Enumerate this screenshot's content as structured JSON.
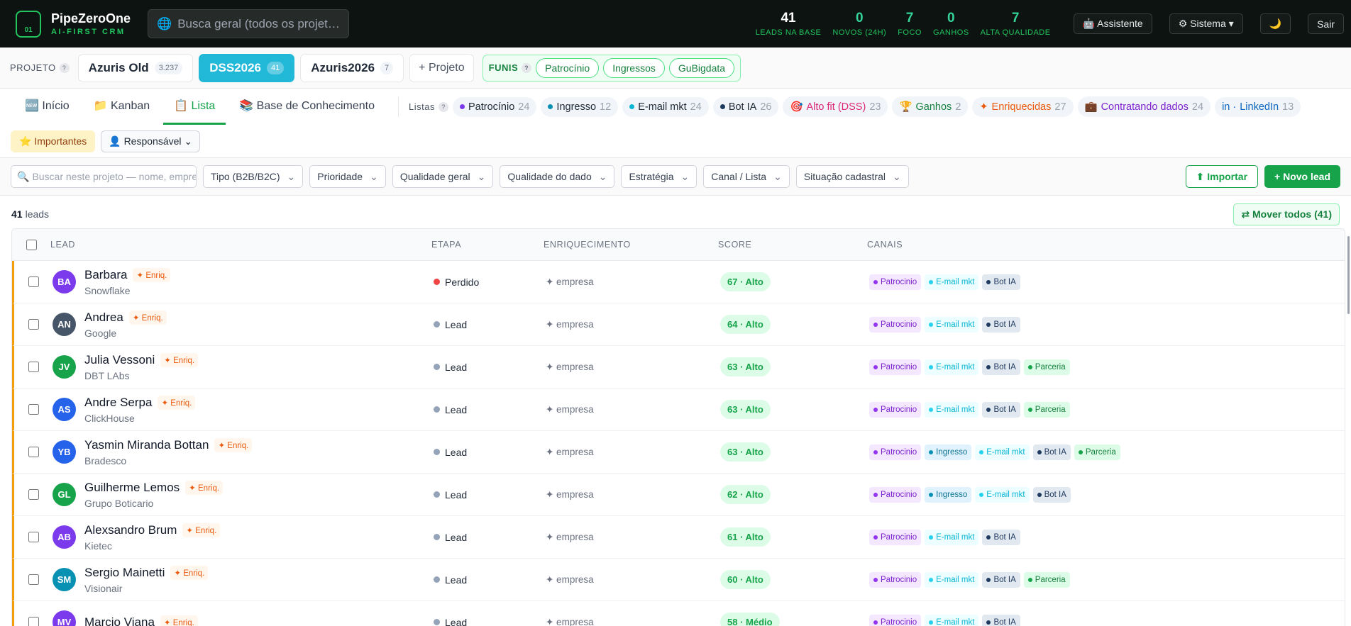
{
  "header": {
    "brand": "PipeZeroOne",
    "tagline": "AI-FIRST CRM",
    "logo": "01",
    "search_icon": "🌐",
    "search": "Busca geral (todos os projetos)",
    "stats": [
      {
        "value": "41",
        "label": "LEADS NA BASE",
        "color": "#ffffff"
      },
      {
        "value": "0",
        "label": "NOVOS (24H)",
        "color": "#34d399"
      },
      {
        "value": "7",
        "label": "FOCO",
        "color": "#34d399"
      },
      {
        "value": "0",
        "label": "GANHOS",
        "color": "#34d399"
      },
      {
        "value": "7",
        "label": "ALTA QUALIDADE",
        "color": "#34d399"
      }
    ],
    "buttons": [
      "🤖 Assistente",
      "⚙ Sistema ▾",
      "🌙",
      "Sair"
    ]
  },
  "projects": {
    "label": "PROJETO",
    "help": "?",
    "items": [
      {
        "name": "Azuris Old",
        "count": "3.237"
      },
      {
        "name": "DSS2026",
        "count": "41",
        "active": true
      },
      {
        "name": "Azuris2026",
        "count": "7"
      }
    ],
    "add": "+ Projeto",
    "funnels_label": "FUNIS",
    "funnels": [
      "Patrocínio",
      "Ingressos",
      "GuBigdata"
    ]
  },
  "tabs": [
    {
      "label": "🆕 Início"
    },
    {
      "label": "📁 Kanban"
    },
    {
      "label": "📋 Lista",
      "active": true
    },
    {
      "label": "📚 Base de Conhecimento"
    }
  ],
  "lists": {
    "label": "Listas",
    "help": "?",
    "items": [
      {
        "name": "Patrocínio",
        "count": "24",
        "dot": "#7c3aed",
        "color": "#1f2937"
      },
      {
        "name": "Ingresso",
        "count": "12",
        "dot": "#0891b2",
        "color": "#1f2937"
      },
      {
        "name": "E-mail mkt",
        "count": "24",
        "dot": "#06b6d4",
        "color": "#1f2937"
      },
      {
        "name": "Bot IA",
        "count": "26",
        "dot": "#1e3a5f",
        "color": "#1f2937"
      },
      {
        "icon": "🎯",
        "name": "Alto fit (DSS)",
        "count": "23",
        "color": "#db2777"
      },
      {
        "icon": "🏆",
        "name": "Ganhos",
        "count": "2",
        "color": "#15803d"
      },
      {
        "icon": "✦",
        "name": "Enriquecidas",
        "count": "27",
        "color": "#ea580c"
      },
      {
        "icon": "💼",
        "name": "Contratando dados",
        "count": "24",
        "color": "#7e22ce"
      },
      {
        "icon": "in ·",
        "name": "LinkedIn",
        "count": "13",
        "color": "#0a66c2"
      }
    ]
  },
  "quick": [
    "⭐ Importantes",
    "👤 Responsável ⌄"
  ],
  "filters": {
    "search_icon": "🔍",
    "search": "Buscar neste projeto — nome, empresa",
    "selects": [
      "Tipo (B2B/B2C)",
      "Prioridade",
      "Qualidade geral",
      "Qualidade do dado",
      "Estratégia",
      "Canal / Lista",
      "Situação cadastral"
    ],
    "import": "⬆ Importar",
    "new": "+ Novo lead"
  },
  "summary": {
    "count": "41",
    "unit": "leads",
    "move": "⇄ Mover todos (41)"
  },
  "table": {
    "columns": [
      "LEAD",
      "ETAPA",
      "ENRIQUECIMENTO",
      "SCORE",
      "CANAIS"
    ],
    "channel_styles": {
      "Patrocinio": {
        "bg": "#f3e8ff",
        "fg": "#7e22ce",
        "dot": "#9333ea"
      },
      "Ingresso": {
        "bg": "#e0f2fe",
        "fg": "#0e7490",
        "dot": "#0891b2"
      },
      "E-mail mkt": {
        "bg": "#ecfeff",
        "fg": "#06b6d4",
        "dot": "#22d3ee"
      },
      "Bot IA": {
        "bg": "#e2e8f0",
        "fg": "#1e3a5f",
        "dot": "#1e3a5f"
      },
      "Parceria": {
        "bg": "#dcfce7",
        "fg": "#15803d",
        "dot": "#16a34a"
      }
    },
    "rows": [
      {
        "initials": "BA",
        "avatar": "#7c3aed",
        "name": "Barbara",
        "badge": "✦ Enriq.",
        "company": "Snowflake",
        "stage": "Perdido",
        "stage_color": "#ef4444",
        "enrichment": "✦ empresa",
        "score": "67 · Alto",
        "channels": [
          "Patrocinio",
          "E-mail mkt",
          "Bot IA"
        ]
      },
      {
        "initials": "AN",
        "avatar": "#475569",
        "name": "Andrea",
        "badge": "✦ Enriq.",
        "company": "Google",
        "stage": "Lead",
        "stage_color": "#94a3b8",
        "enrichment": "✦ empresa",
        "score": "64 · Alto",
        "channels": [
          "Patrocinio",
          "E-mail mkt",
          "Bot IA"
        ]
      },
      {
        "initials": "JV",
        "avatar": "#16a34a",
        "name": "Julia Vessoni",
        "badge": "✦ Enriq.",
        "company": "DBT LAbs",
        "stage": "Lead",
        "stage_color": "#94a3b8",
        "enrichment": "✦ empresa",
        "score": "63 · Alto",
        "channels": [
          "Patrocinio",
          "E-mail mkt",
          "Bot IA",
          "Parceria"
        ]
      },
      {
        "initials": "AS",
        "avatar": "#2563eb",
        "name": "Andre Serpa",
        "badge": "✦ Enriq.",
        "company": "ClickHouse",
        "stage": "Lead",
        "stage_color": "#94a3b8",
        "enrichment": "✦ empresa",
        "score": "63 · Alto",
        "channels": [
          "Patrocinio",
          "E-mail mkt",
          "Bot IA",
          "Parceria"
        ]
      },
      {
        "initials": "YB",
        "avatar": "#2563eb",
        "name": "Yasmin Miranda Bottan",
        "badge": "✦ Enriq.",
        "company": "Bradesco",
        "stage": "Lead",
        "stage_color": "#94a3b8",
        "enrichment": "✦ empresa",
        "score": "63 · Alto",
        "channels": [
          "Patrocinio",
          "Ingresso",
          "E-mail mkt",
          "Bot IA",
          "Parceria"
        ]
      },
      {
        "initials": "GL",
        "avatar": "#16a34a",
        "name": "Guilherme Lemos",
        "badge": "✦ Enriq.",
        "company": "Grupo Boticario",
        "stage": "Lead",
        "stage_color": "#94a3b8",
        "enrichment": "✦ empresa",
        "score": "62 · Alto",
        "channels": [
          "Patrocinio",
          "Ingresso",
          "E-mail mkt",
          "Bot IA"
        ]
      },
      {
        "initials": "AB",
        "avatar": "#7c3aed",
        "name": "Alexsandro Brum",
        "badge": "✦ Enriq.",
        "company": "Kietec",
        "stage": "Lead",
        "stage_color": "#94a3b8",
        "enrichment": "✦ empresa",
        "score": "61 · Alto",
        "channels": [
          "Patrocinio",
          "E-mail mkt",
          "Bot IA"
        ]
      },
      {
        "initials": "SM",
        "avatar": "#0891b2",
        "name": "Sergio Mainetti",
        "badge": "✦ Enriq.",
        "company": "Visionair",
        "stage": "Lead",
        "stage_color": "#94a3b8",
        "enrichment": "✦ empresa",
        "score": "60 · Alto",
        "channels": [
          "Patrocinio",
          "E-mail mkt",
          "Bot IA",
          "Parceria"
        ]
      },
      {
        "initials": "MV",
        "avatar": "#7c3aed",
        "name": "Marcio Viana",
        "badge": "✦ Enriq.",
        "company": "",
        "stage": "Lead",
        "stage_color": "#94a3b8",
        "enrichment": "✦ empresa",
        "score": "58 · Médio",
        "channels": [
          "Patrocinio",
          "E-mail mkt",
          "Bot IA"
        ]
      }
    ]
  }
}
